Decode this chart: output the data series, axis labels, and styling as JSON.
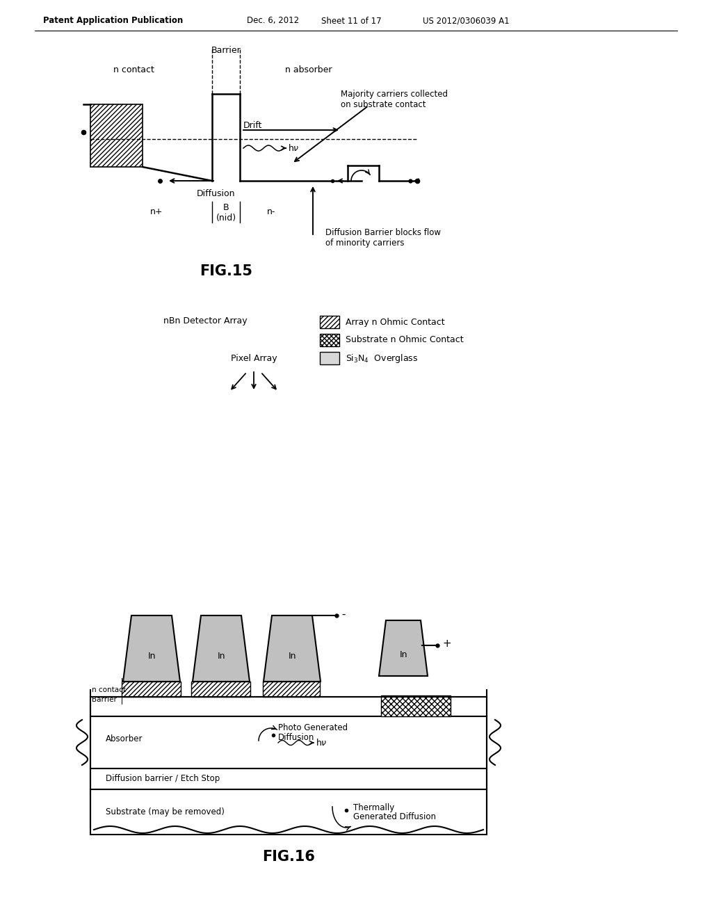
{
  "bg_color": "#ffffff",
  "header_text": "Patent Application Publication",
  "header_date": "Dec. 6, 2012",
  "header_sheet": "Sheet 11 of 17",
  "header_patent": "US 2012/0306039 A1",
  "fig15_title": "FIG.15",
  "fig16_title": "FIG.16",
  "gray_pixel": "#c0c0c0",
  "dark_gray": "#a0a0a0"
}
